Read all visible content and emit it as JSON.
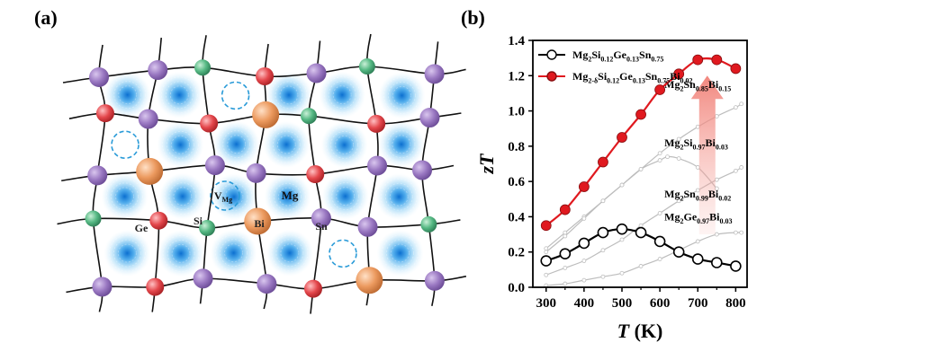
{
  "panel_a": {
    "label": "(a)",
    "atom_labels": [
      "Ge",
      "Si",
      "Bi",
      "Sn",
      "Mg"
    ],
    "vacancy_label": {
      "main": "V",
      "sub": "Mg"
    },
    "colors": {
      "Mg": "#8e6cb3",
      "Si": "#4caf7a",
      "Ge": "#e0464b",
      "Bi": "#e8955a",
      "Sn": "#8e6cb3",
      "cloud": "#1e90d8",
      "vacancy": "#2a9bd8"
    }
  },
  "panel_b": {
    "label": "(b)"
  },
  "chart_data": {
    "type": "line",
    "xlabel": "T (K)",
    "ylabel": "zT",
    "xlim": [
      265,
      830
    ],
    "ylim": [
      0,
      1.4
    ],
    "xticks": [
      300,
      400,
      500,
      600,
      700,
      800
    ],
    "yticks": [
      0.0,
      0.2,
      0.4,
      0.6,
      0.8,
      1.0,
      1.2,
      1.4
    ],
    "legend_position": "top-left",
    "series": [
      {
        "name": "Mg2Si0.12Ge0.13Sn0.75",
        "legend_parts": [
          [
            "Mg",
            ""
          ],
          [
            "2",
            "sub"
          ],
          [
            "Si",
            ""
          ],
          [
            "0.12",
            "sub"
          ],
          [
            "Ge",
            ""
          ],
          [
            "0.13",
            "sub"
          ],
          [
            "Sn",
            ""
          ],
          [
            "0.75",
            "sub"
          ]
        ],
        "color": "#000000",
        "marker": "hollow",
        "x": [
          300,
          350,
          400,
          450,
          500,
          550,
          600,
          650,
          700,
          750,
          800
        ],
        "y": [
          0.15,
          0.19,
          0.25,
          0.31,
          0.33,
          0.31,
          0.26,
          0.2,
          0.16,
          0.14,
          0.12
        ]
      },
      {
        "name": "Mg2-δSi0.12Ge0.13Sn0.75Bi0.02",
        "legend_parts": [
          [
            "Mg",
            ""
          ],
          [
            "2-δ",
            "sub"
          ],
          [
            "Si",
            ""
          ],
          [
            "0.12",
            "sub"
          ],
          [
            "Ge",
            ""
          ],
          [
            "0.13",
            "sub"
          ],
          [
            "Sn",
            ""
          ],
          [
            "0.75",
            "sub"
          ],
          [
            "Bi",
            ""
          ],
          [
            "0.02",
            "sub"
          ]
        ],
        "color": "#e0191f",
        "marker": "filled",
        "x": [
          300,
          350,
          400,
          450,
          500,
          550,
          600,
          650,
          700,
          750,
          800
        ],
        "y": [
          0.35,
          0.44,
          0.57,
          0.71,
          0.85,
          0.98,
          1.12,
          1.21,
          1.29,
          1.29,
          1.24
        ]
      }
    ],
    "reference_curves": [
      {
        "label_parts": [
          [
            "Mg",
            ""
          ],
          [
            "2",
            "sub"
          ],
          [
            "Sn",
            ""
          ],
          [
            "0.85",
            "sub"
          ],
          [
            "Bi",
            ""
          ],
          [
            "0.15",
            "sub"
          ]
        ],
        "x": [
          300,
          350,
          400,
          450,
          500,
          550,
          600,
          650,
          700,
          750,
          800,
          815
        ],
        "y": [
          0.22,
          0.31,
          0.4,
          0.49,
          0.58,
          0.67,
          0.76,
          0.84,
          0.91,
          0.97,
          1.02,
          1.04
        ]
      },
      {
        "label_parts": [
          [
            "Mg",
            ""
          ],
          [
            "2",
            "sub"
          ],
          [
            "Si",
            ""
          ],
          [
            "0.97",
            "sub"
          ],
          [
            "Bi",
            ""
          ],
          [
            "0.03",
            "sub"
          ]
        ],
        "x": [
          300,
          350,
          400,
          450,
          500,
          550,
          600,
          620,
          650,
          700,
          750
        ],
        "y": [
          0.2,
          0.29,
          0.39,
          0.49,
          0.58,
          0.67,
          0.72,
          0.74,
          0.73,
          0.68,
          0.56
        ]
      },
      {
        "label_parts": [
          [
            "Mg",
            ""
          ],
          [
            "2",
            "sub"
          ],
          [
            "Sn",
            ""
          ],
          [
            "0.99",
            "sub"
          ],
          [
            "Bi",
            ""
          ],
          [
            "0.02",
            "sub"
          ]
        ],
        "x": [
          300,
          350,
          400,
          450,
          500,
          550,
          600,
          650,
          700,
          750,
          800,
          815
        ],
        "y": [
          0.07,
          0.11,
          0.15,
          0.21,
          0.27,
          0.35,
          0.42,
          0.49,
          0.55,
          0.61,
          0.66,
          0.68
        ]
      },
      {
        "label_parts": [
          [
            "Mg",
            ""
          ],
          [
            "2",
            "sub"
          ],
          [
            "Ge",
            ""
          ],
          [
            "0.97",
            "sub"
          ],
          [
            "Bi",
            ""
          ],
          [
            "0.03",
            "sub"
          ]
        ],
        "x": [
          300,
          350,
          400,
          450,
          500,
          550,
          600,
          650,
          700,
          750,
          800,
          815
        ],
        "y": [
          0.01,
          0.02,
          0.04,
          0.06,
          0.08,
          0.12,
          0.16,
          0.21,
          0.26,
          0.3,
          0.31,
          0.31
        ]
      }
    ],
    "reference_color": "#bdbdbd",
    "arrow_color": "#f07a70"
  }
}
